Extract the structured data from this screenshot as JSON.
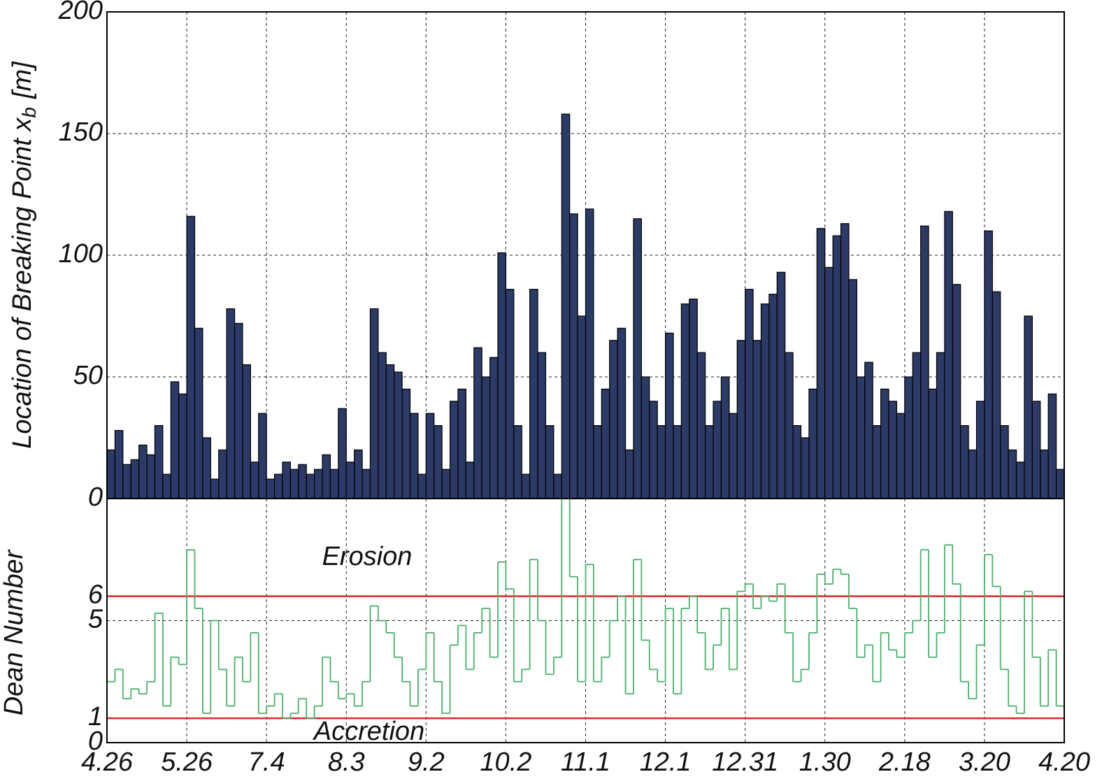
{
  "chart_data": [
    {
      "type": "bar",
      "ylabel": "Location of Breaking Point  x",
      "ylabel_sub": "b",
      "ylabel_unit": "[m]",
      "color": "#2b3a66",
      "edgecolor": "#000000",
      "grid": true,
      "xlim": [
        0,
        360
      ],
      "ylim": [
        0,
        200
      ],
      "yticks": [
        0,
        50,
        100,
        150,
        200
      ],
      "x": [
        0,
        3,
        6,
        9,
        12,
        15,
        18,
        21,
        24,
        27,
        30,
        33,
        36,
        39,
        42,
        45,
        48,
        51,
        54,
        57,
        60,
        63,
        66,
        69,
        72,
        75,
        78,
        81,
        84,
        87,
        90,
        93,
        96,
        99,
        102,
        105,
        108,
        111,
        114,
        117,
        120,
        123,
        126,
        129,
        132,
        135,
        138,
        141,
        144,
        147,
        150,
        153,
        156,
        159,
        162,
        165,
        168,
        171,
        174,
        177,
        180,
        183,
        186,
        189,
        192,
        195,
        198,
        201,
        204,
        207,
        210,
        213,
        216,
        219,
        222,
        225,
        228,
        231,
        234,
        237,
        240,
        243,
        246,
        249,
        252,
        255,
        258,
        261,
        264,
        267,
        270,
        273,
        276,
        279,
        282,
        285,
        288,
        291,
        294,
        297,
        300,
        303,
        306,
        309,
        312,
        315,
        318,
        321,
        324,
        327,
        330,
        333,
        336,
        339,
        342,
        345,
        348,
        351,
        354,
        357
      ],
      "values": [
        20,
        28,
        14,
        16,
        22,
        18,
        30,
        10,
        48,
        43,
        116,
        70,
        25,
        8,
        20,
        78,
        72,
        55,
        15,
        35,
        8,
        10,
        15,
        12,
        14,
        10,
        12,
        18,
        12,
        37,
        15,
        20,
        12,
        78,
        60,
        55,
        52,
        45,
        35,
        10,
        35,
        30,
        12,
        40,
        45,
        15,
        62,
        50,
        58,
        101,
        86,
        30,
        10,
        86,
        60,
        30,
        10,
        158,
        117,
        75,
        119,
        30,
        45,
        65,
        70,
        20,
        115,
        50,
        40,
        30,
        68,
        30,
        80,
        82,
        60,
        30,
        40,
        50,
        35,
        65,
        86,
        65,
        80,
        84,
        93,
        60,
        30,
        25,
        45,
        111,
        95,
        108,
        113,
        90,
        50,
        56,
        30,
        45,
        40,
        35,
        50,
        60,
        112,
        45,
        60,
        118,
        88,
        30,
        20,
        40,
        110,
        85,
        30,
        20,
        15,
        75,
        40,
        20,
        43,
        12
      ]
    },
    {
      "type": "step",
      "ylabel": "Dean Number",
      "color": "#4caf6e",
      "grid": true,
      "xlim": [
        0,
        360
      ],
      "ylim": [
        0,
        10
      ],
      "yticks": [
        0,
        1,
        5,
        6
      ],
      "xticks": [
        {
          "value": 0,
          "label": "4.26"
        },
        {
          "value": 30,
          "label": "5.26"
        },
        {
          "value": 60,
          "label": "7.4"
        },
        {
          "value": 90,
          "label": "8.3"
        },
        {
          "value": 120,
          "label": "9.2"
        },
        {
          "value": 150,
          "label": "10.2"
        },
        {
          "value": 180,
          "label": "11.1"
        },
        {
          "value": 210,
          "label": "12.1"
        },
        {
          "value": 240,
          "label": "12.31"
        },
        {
          "value": 270,
          "label": "1.30"
        },
        {
          "value": 300,
          "label": "2.18"
        },
        {
          "value": 330,
          "label": "3.20"
        },
        {
          "value": 360,
          "label": "4.20"
        }
      ],
      "hlines": [
        {
          "value": 1,
          "color": "#e3262b"
        },
        {
          "value": 6,
          "color": "#e3262b"
        }
      ],
      "annotations": [
        "Erosion",
        "Accretion"
      ],
      "x": [
        0,
        3,
        6,
        9,
        12,
        15,
        18,
        21,
        24,
        27,
        30,
        33,
        36,
        39,
        42,
        45,
        48,
        51,
        54,
        57,
        60,
        63,
        66,
        69,
        72,
        75,
        78,
        81,
        84,
        87,
        90,
        93,
        96,
        99,
        102,
        105,
        108,
        111,
        114,
        117,
        120,
        123,
        126,
        129,
        132,
        135,
        138,
        141,
        144,
        147,
        150,
        153,
        156,
        159,
        162,
        165,
        168,
        171,
        174,
        177,
        180,
        183,
        186,
        189,
        192,
        195,
        198,
        201,
        204,
        207,
        210,
        213,
        216,
        219,
        222,
        225,
        228,
        231,
        234,
        237,
        240,
        243,
        246,
        249,
        252,
        255,
        258,
        261,
        264,
        267,
        270,
        273,
        276,
        279,
        282,
        285,
        288,
        291,
        294,
        297,
        300,
        303,
        306,
        309,
        312,
        315,
        318,
        321,
        324,
        327,
        330,
        333,
        336,
        339,
        342,
        345,
        348,
        351,
        354,
        357
      ],
      "values": [
        2.5,
        3,
        1.8,
        2.2,
        2,
        2.5,
        5.3,
        1.5,
        3.5,
        3.2,
        7.9,
        5.5,
        1.2,
        5,
        3,
        1.5,
        3.5,
        2.5,
        4.5,
        1.2,
        1.5,
        2,
        1,
        1.2,
        1.8,
        1,
        1.5,
        3.5,
        2.5,
        1.8,
        2,
        1.5,
        2.5,
        5.6,
        5,
        4.5,
        3.5,
        2.5,
        1.5,
        3,
        4.5,
        2.5,
        1.2,
        4,
        4.8,
        3,
        4.5,
        5.5,
        3.5,
        7.4,
        6.3,
        2.5,
        3,
        7.5,
        5,
        2.8,
        3.5,
        10,
        6.8,
        2.5,
        7.3,
        2.5,
        3.5,
        5,
        6,
        2,
        7.5,
        4.2,
        3,
        2.5,
        5.5,
        2,
        5.5,
        6,
        4.5,
        3,
        4,
        5.5,
        3,
        6.2,
        6.5,
        5.5,
        6,
        5.8,
        6.5,
        4.5,
        2.5,
        3,
        4.5,
        6.9,
        6.5,
        7.1,
        6.9,
        5.5,
        3.5,
        4,
        2.5,
        4.5,
        3.8,
        3.5,
        4.5,
        5,
        7.9,
        3.5,
        4.5,
        8.1,
        6.5,
        2.5,
        1.8,
        4,
        7.7,
        6.4,
        3,
        1.5,
        1.2,
        6.2,
        3.5,
        1.5,
        3.8,
        1.5
      ]
    }
  ]
}
